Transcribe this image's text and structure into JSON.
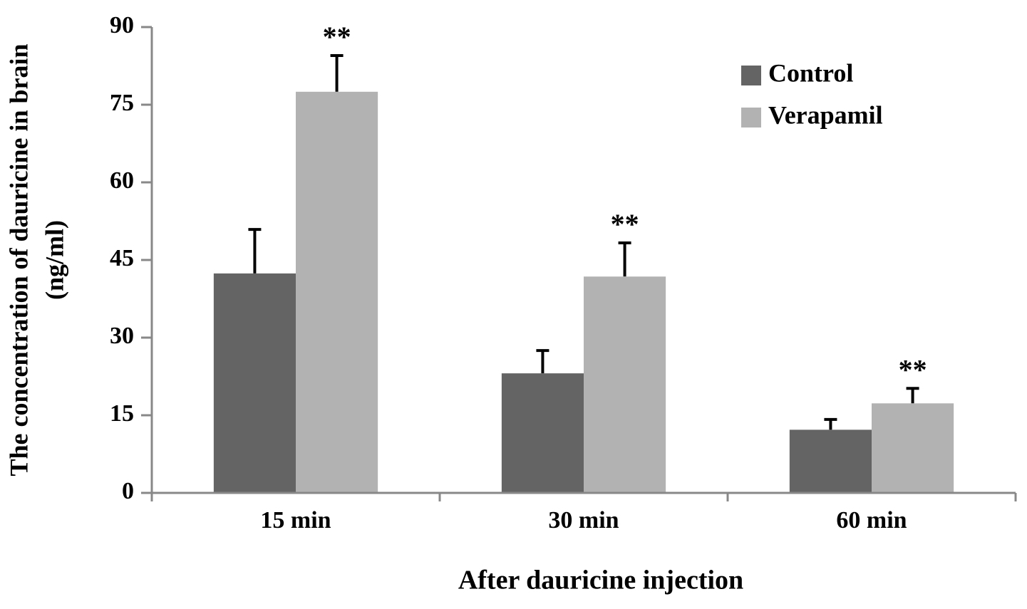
{
  "chart_data": {
    "type": "bar",
    "y_label": [
      "The concentration of dauricine in brain",
      "(ng/ml)"
    ],
    "x_label": "After dauricine injection",
    "categories": [
      "15 min",
      "30 min",
      "60 min"
    ],
    "series": [
      {
        "name": "Control",
        "color": "#646464",
        "values": [
          42.4,
          23.1,
          12.2
        ],
        "errors": [
          8.5,
          4.4,
          2.0
        ]
      },
      {
        "name": "Verapamil",
        "color": "#b2b2b2",
        "values": [
          77.5,
          41.8,
          17.3
        ],
        "errors": [
          7.0,
          6.5,
          2.9
        ],
        "annotations": [
          "**",
          "**",
          "**"
        ]
      }
    ],
    "ylim": [
      0,
      90
    ],
    "yticks": [
      0,
      15,
      30,
      45,
      60,
      75,
      90
    ],
    "legend": "upper right"
  }
}
